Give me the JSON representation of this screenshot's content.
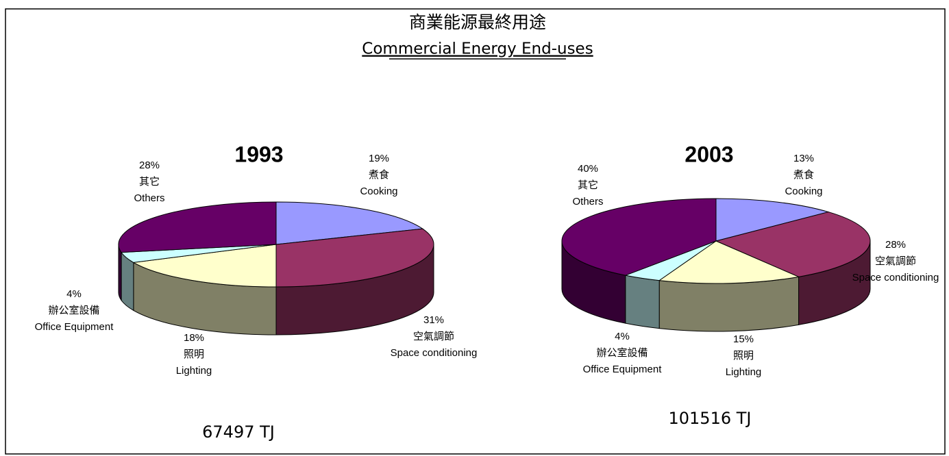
{
  "title": "商業能源最終用途",
  "subtitle": "Commercial Energy End-uses",
  "chart_data": [
    {
      "type": "pie",
      "title": "1993",
      "annotation": "67497 TJ",
      "categories": [
        "煮食",
        "空氣調節",
        "照明",
        "辦公室設備",
        "其它"
      ],
      "categories_en": [
        "Cooking",
        "Space conditioning",
        "Lighting",
        "Office Equipment",
        "Others"
      ],
      "values": [
        19,
        31,
        18,
        4,
        28
      ],
      "value_labels": [
        "19%",
        "31%",
        "18%",
        "4%",
        "28%"
      ],
      "colors": [
        "#9999ff",
        "#993366",
        "#ffffcc",
        "#ccffff",
        "#660066"
      ]
    },
    {
      "type": "pie",
      "title": "2003",
      "annotation": "101516 TJ",
      "categories": [
        "煮食",
        "空氣調節",
        "照明",
        "辦公室設備",
        "其它"
      ],
      "categories_en": [
        "Cooking",
        "Space conditioning",
        "Lighting",
        "Office Equipment",
        "Others"
      ],
      "values": [
        13,
        28,
        15,
        4,
        40
      ],
      "value_labels": [
        "13%",
        "28%",
        "15%",
        "4%",
        "40%"
      ],
      "colors": [
        "#9999ff",
        "#993366",
        "#ffffcc",
        "#ccffff",
        "#660066"
      ]
    }
  ]
}
